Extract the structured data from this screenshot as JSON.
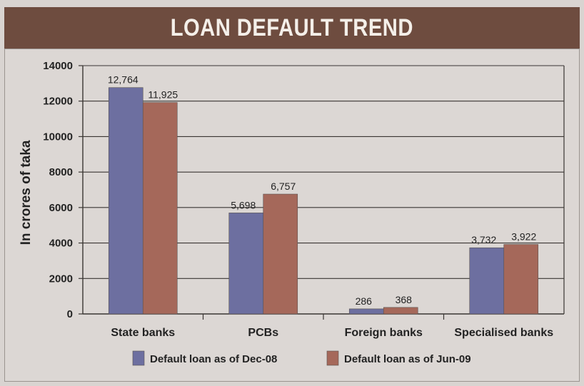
{
  "chart_data": {
    "type": "bar",
    "title": "LOAN DEFAULT TREND",
    "ylabel": "In crores of taka",
    "xlabel": "",
    "ylim": [
      0,
      14000
    ],
    "yticks": [
      0,
      2000,
      4000,
      6000,
      8000,
      10000,
      12000,
      14000
    ],
    "grid": true,
    "legend_position": "bottom",
    "categories": [
      "State banks",
      "PCBs",
      "Foreign banks",
      "Specialised banks"
    ],
    "series": [
      {
        "name": "Default loan as of Dec-08",
        "color": "#6d6fa0",
        "values": [
          12764,
          5698,
          286,
          3732
        ],
        "labels": [
          "12,764",
          "5,698",
          "286",
          "3,732"
        ]
      },
      {
        "name": "Default loan as of Jun-09",
        "color": "#a5685a",
        "values": [
          11925,
          6757,
          368,
          3922
        ],
        "labels": [
          "11,925",
          "6,757",
          "368",
          "3,922"
        ]
      }
    ]
  },
  "colors": {
    "title_bar": "#6e4c3f",
    "background": "#d9d4d1"
  }
}
